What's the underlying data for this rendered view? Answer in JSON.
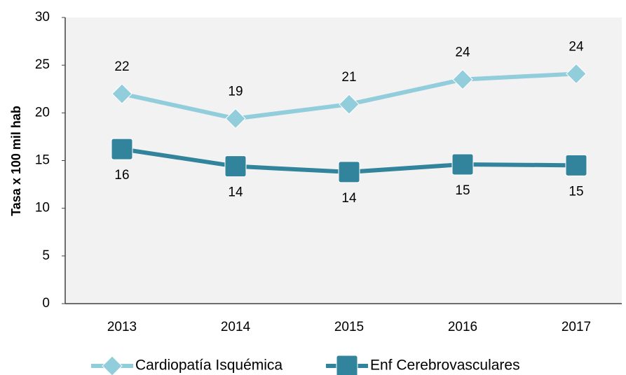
{
  "chart_data": {
    "type": "line",
    "y_label": "Tasa x 100 mil hab",
    "categories": [
      "2013",
      "2014",
      "2015",
      "2016",
      "2017"
    ],
    "series": [
      {
        "name": "Cardiopatía Isquémica",
        "color": "#92cddc",
        "marker": "diamond",
        "label_position": "above",
        "values": [
          22.0,
          19.4,
          20.9,
          23.5,
          24.1
        ],
        "value_labels": [
          "22",
          "19",
          "21",
          "24",
          "24"
        ]
      },
      {
        "name": "Enf Cerebrovasculares",
        "color": "#31849b",
        "marker": "square",
        "label_position": "below",
        "values": [
          16.2,
          14.4,
          13.8,
          14.6,
          14.5
        ],
        "value_labels": [
          "16",
          "14",
          "14",
          "15",
          "15"
        ]
      }
    ],
    "ylim": [
      0,
      30
    ],
    "yticks": [
      0,
      5,
      10,
      15,
      20,
      25,
      30
    ],
    "grid": false,
    "legend": "bottom"
  }
}
